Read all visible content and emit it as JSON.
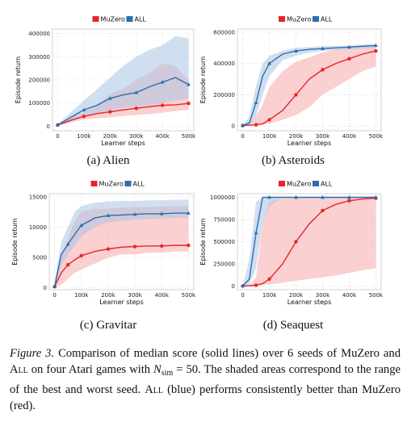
{
  "figure": {
    "caption_label": "Figure 3.",
    "caption_part1": " Comparison of median score (solid lines) over 6 seeds of MuZero and ",
    "caption_all": "All",
    "caption_part2": " on four Atari games with ",
    "caption_nsim_symbol": "N",
    "caption_nsim_sub": "sim",
    "caption_nsim_value": " = 50",
    "caption_part3": ". The shaded areas correspond to the range of the best and worst seed. ",
    "caption_all2": "All",
    "caption_part4": " (blue) performs consistently better than MuZero (red)."
  },
  "colors": {
    "muzero": "#e8242b",
    "muzero_fill": "#f7a9a9",
    "all": "#2b6db0",
    "all_fill": "#a9c4e3",
    "grid": "#e6e6e6",
    "axis": "#333333"
  },
  "chart_data": [
    {
      "type": "line",
      "panel_title": "(a) Alien",
      "xlabel": "Learner steps",
      "ylabel": "Episode return",
      "xlim": [
        -20000,
        520000
      ],
      "ylim": [
        -20000,
        420000
      ],
      "xticks": [
        0,
        100000,
        200000,
        300000,
        400000,
        500000
      ],
      "xtick_labels": [
        "0",
        "100k",
        "200k",
        "300k",
        "400k",
        "500k"
      ],
      "yticks": [
        0,
        100000,
        200000,
        300000,
        400000
      ],
      "ytick_labels": [
        "0",
        "100000",
        "200000",
        "300000",
        "400000"
      ],
      "grid": true,
      "legend": "top-center",
      "x": [
        0,
        50000,
        100000,
        150000,
        200000,
        250000,
        300000,
        350000,
        400000,
        450000,
        500000
      ],
      "series": [
        {
          "name": "MuZero",
          "marker": "circle",
          "values": [
            5000,
            25000,
            42000,
            54000,
            62000,
            70000,
            77000,
            84000,
            90000,
            92000,
            98000
          ],
          "lower": [
            2000,
            15000,
            28000,
            33000,
            38000,
            44000,
            48000,
            52000,
            58000,
            65000,
            70000
          ],
          "upper": [
            8000,
            40000,
            60000,
            90000,
            140000,
            160000,
            200000,
            230000,
            270000,
            260000,
            200000
          ]
        },
        {
          "name": "ALL",
          "marker": "triangle",
          "values": [
            5000,
            38000,
            70000,
            90000,
            120000,
            135000,
            145000,
            170000,
            190000,
            210000,
            180000
          ],
          "lower": [
            2000,
            20000,
            40000,
            55000,
            70000,
            80000,
            85000,
            90000,
            100000,
            110000,
            120000
          ],
          "upper": [
            9000,
            60000,
            110000,
            160000,
            210000,
            260000,
            300000,
            330000,
            350000,
            390000,
            380000
          ]
        }
      ]
    },
    {
      "type": "line",
      "panel_title": "(b) Asteroids",
      "xlabel": "Learner steps",
      "ylabel": "Episode return",
      "xlim": [
        -20000,
        520000
      ],
      "ylim": [
        -30000,
        620000
      ],
      "xticks": [
        0,
        100000,
        200000,
        300000,
        400000,
        500000
      ],
      "xtick_labels": [
        "0",
        "100k",
        "200k",
        "300k",
        "400k",
        "500k"
      ],
      "yticks": [
        0,
        200000,
        400000,
        600000
      ],
      "ytick_labels": [
        "0",
        "200000",
        "400000",
        "600000"
      ],
      "grid": true,
      "legend": "top-center",
      "x": [
        0,
        25000,
        50000,
        75000,
        100000,
        150000,
        200000,
        250000,
        300000,
        350000,
        400000,
        450000,
        500000
      ],
      "series": [
        {
          "name": "MuZero",
          "marker": "circle",
          "values": [
            3000,
            5000,
            8000,
            15000,
            40000,
            100000,
            200000,
            300000,
            360000,
            400000,
            430000,
            460000,
            480000
          ],
          "lower": [
            0,
            2000,
            4000,
            8000,
            15000,
            40000,
            70000,
            120000,
            200000,
            250000,
            300000,
            350000,
            380000
          ],
          "upper": [
            6000,
            20000,
            60000,
            140000,
            250000,
            350000,
            410000,
            440000,
            470000,
            490000,
            500000,
            510000,
            510000
          ]
        },
        {
          "name": "ALL",
          "marker": "triangle",
          "values": [
            3000,
            20000,
            150000,
            320000,
            400000,
            460000,
            480000,
            490000,
            495000,
            500000,
            505000,
            510000,
            515000
          ],
          "lower": [
            0,
            8000,
            60000,
            200000,
            320000,
            420000,
            450000,
            470000,
            480000,
            485000,
            490000,
            495000,
            500000
          ],
          "upper": [
            6000,
            60000,
            260000,
            400000,
            450000,
            480000,
            500000,
            505000,
            510000,
            512000,
            515000,
            520000,
            525000
          ]
        }
      ]
    },
    {
      "type": "line",
      "panel_title": "(c) Gravitar",
      "xlabel": "Learner steps",
      "ylabel": "Episode return",
      "xlim": [
        -20000,
        520000
      ],
      "ylim": [
        -300,
        15500
      ],
      "xticks": [
        0,
        100000,
        200000,
        300000,
        400000,
        500000
      ],
      "xtick_labels": [
        "0",
        "100k",
        "200k",
        "300k",
        "400k",
        "500k"
      ],
      "yticks": [
        0,
        5000,
        10000,
        15000
      ],
      "ytick_labels": [
        "0",
        "5000",
        "10000",
        "15000"
      ],
      "grid": true,
      "legend": "top-center",
      "x": [
        0,
        25000,
        50000,
        75000,
        100000,
        150000,
        200000,
        250000,
        300000,
        350000,
        400000,
        450000,
        500000
      ],
      "series": [
        {
          "name": "MuZero",
          "marker": "circle",
          "values": [
            200,
            2500,
            3800,
            4600,
            5300,
            6000,
            6400,
            6700,
            6800,
            6900,
            6900,
            7000,
            7000
          ],
          "lower": [
            0,
            500,
            1500,
            2500,
            3000,
            4000,
            5000,
            5500,
            5500,
            5800,
            5800,
            6000,
            6000
          ],
          "upper": [
            800,
            5000,
            8000,
            11000,
            12500,
            13000,
            13000,
            13200,
            13300,
            13300,
            13400,
            13400,
            13500
          ]
        },
        {
          "name": "ALL",
          "marker": "triangle",
          "values": [
            200,
            5500,
            7200,
            8800,
            10300,
            11500,
            11900,
            12000,
            12100,
            12200,
            12200,
            12300,
            12300
          ],
          "lower": [
            0,
            3500,
            5500,
            7000,
            8500,
            10000,
            10800,
            11000,
            11200,
            11300,
            11400,
            11500,
            11500
          ],
          "upper": [
            1000,
            7500,
            10000,
            12500,
            13500,
            14000,
            14200,
            14300,
            14300,
            14400,
            14400,
            14500,
            14500
          ]
        }
      ]
    },
    {
      "type": "line",
      "panel_title": "(d) Seaquest",
      "xlabel": "Learner steps",
      "ylabel": "Episode return",
      "xlim": [
        -20000,
        520000
      ],
      "ylim": [
        -40000,
        1040000
      ],
      "xticks": [
        0,
        100000,
        200000,
        300000,
        400000,
        500000
      ],
      "xtick_labels": [
        "0",
        "100k",
        "200k",
        "300k",
        "400k",
        "500k"
      ],
      "yticks": [
        0,
        250000,
        500000,
        750000,
        1000000
      ],
      "ytick_labels": [
        "0",
        "250000",
        "500000",
        "750000",
        "1000000"
      ],
      "grid": true,
      "legend": "top-center",
      "x": [
        0,
        25000,
        50000,
        75000,
        100000,
        150000,
        200000,
        250000,
        300000,
        350000,
        400000,
        450000,
        500000
      ],
      "series": [
        {
          "name": "MuZero",
          "marker": "circle",
          "values": [
            2000,
            5000,
            10000,
            30000,
            80000,
            250000,
            500000,
            700000,
            850000,
            920000,
            960000,
            980000,
            990000
          ],
          "lower": [
            0,
            2000,
            5000,
            10000,
            20000,
            40000,
            60000,
            80000,
            100000,
            120000,
            150000,
            180000,
            200000
          ],
          "upper": [
            5000,
            10000,
            100000,
            700000,
            950000,
            990000,
            999000,
            999000,
            999000,
            999000,
            999000,
            999000,
            999000
          ]
        },
        {
          "name": "ALL",
          "marker": "triangle",
          "values": [
            2000,
            80000,
            600000,
            999000,
            999000,
            999000,
            999000,
            999000,
            999000,
            999000,
            999000,
            999000,
            999000
          ],
          "lower": [
            0,
            20000,
            200000,
            700000,
            900000,
            999000,
            999000,
            999000,
            999000,
            999000,
            999000,
            999000,
            999000
          ],
          "upper": [
            5000,
            300000,
            950000,
            999000,
            999000,
            999000,
            999000,
            999000,
            999000,
            999000,
            999000,
            999000,
            999000
          ]
        }
      ]
    }
  ]
}
